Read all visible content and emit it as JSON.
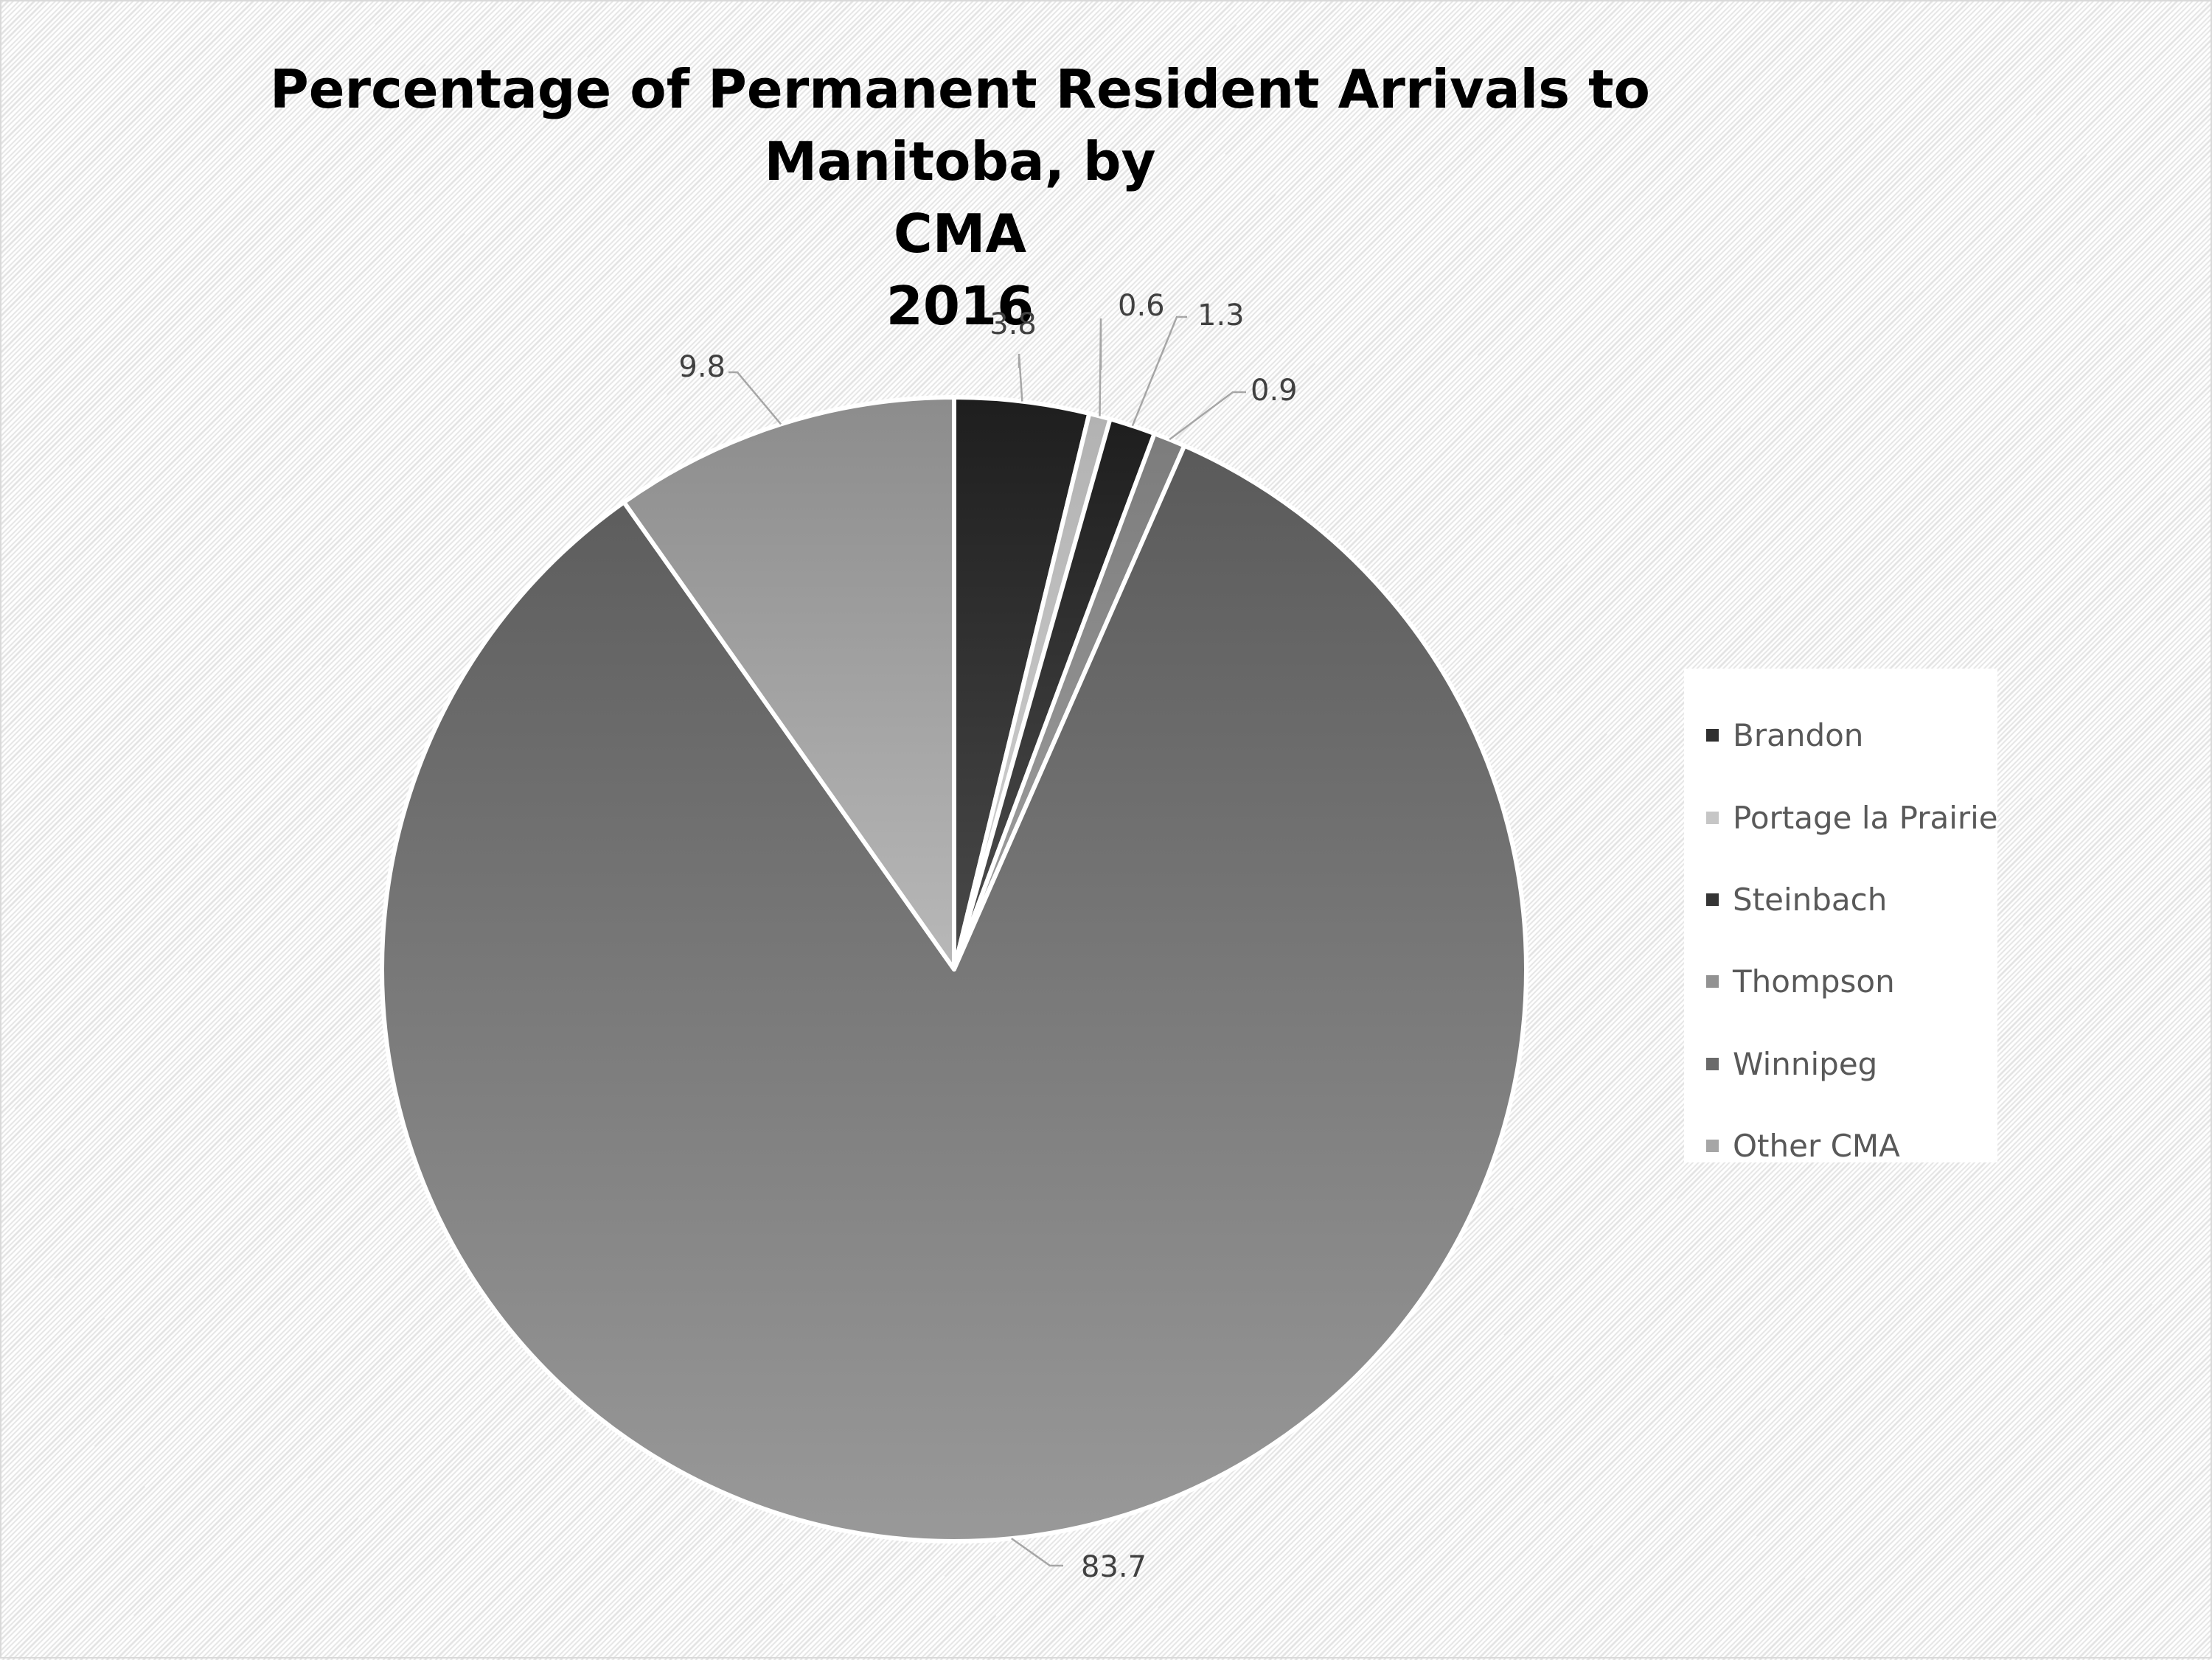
{
  "chart_data": {
    "type": "pie",
    "title_lines": [
      "Percentage of Permanent Resident Arrivals to Manitoba, by",
      "CMA",
      "2016"
    ],
    "categories": [
      "Brandon",
      "Portage la Prairie",
      "Steinbach",
      "Thompson",
      "Winnipeg",
      "Other CMA"
    ],
    "values": [
      3.8,
      0.6,
      1.3,
      0.9,
      83.7,
      9.8
    ],
    "value_labels": [
      "3.8",
      "0.6",
      "1.3",
      "0.9",
      "83.7",
      "9.8"
    ],
    "slice_colors": [
      [
        "#4a4a4a",
        "#1e1e1e"
      ],
      [
        "#d2d2d2",
        "#b2b2b2"
      ],
      [
        "#4e4e4e",
        "#1e1e1e"
      ],
      [
        "#a0a0a0",
        "#7c7c7c"
      ],
      [
        "#999999",
        "#5a5a5a"
      ],
      [
        "#b8b8b8",
        "#8c8c8c"
      ]
    ],
    "legend_swatch_colors": [
      "#2f2f2f",
      "#c6c6c6",
      "#353535",
      "#929292",
      "#6a6a6a",
      "#a6a6a6"
    ],
    "legend_position": "right",
    "start_angle_deg": 0,
    "direction": "clockwise"
  }
}
